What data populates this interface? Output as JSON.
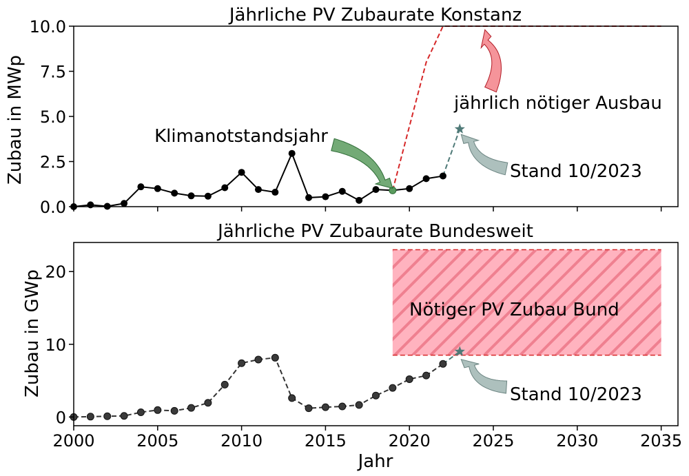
{
  "colors": {
    "black": "#000000",
    "dark_gray": "#333333",
    "red": "#d62728",
    "red_fill": "#ffb3bf",
    "red_hatch": "#ef8090",
    "green_arrow": "#5a9b5e",
    "teal_arrow": "#9fb5b1",
    "star": "#4f7a78"
  },
  "xlabel": "Jahr",
  "chart_data": [
    {
      "type": "line",
      "title": "Jährliche PV Zubaurate Konstanz",
      "xlabel": "",
      "ylabel": "Zubau in MWp",
      "xlim": [
        2000,
        2036
      ],
      "ylim": [
        0,
        10
      ],
      "yticks": [
        "0.0",
        "2.5",
        "5.0",
        "7.5",
        "10.0"
      ],
      "grid": false,
      "series": [
        {
          "style": "solid-with-markers",
          "x": [
            2000,
            2001,
            2002,
            2003,
            2004,
            2005,
            2006,
            2007,
            2008,
            2009,
            2010,
            2011,
            2012,
            2013,
            2014,
            2015,
            2016,
            2017,
            2018,
            2019,
            2020,
            2021,
            2022
          ],
          "values": [
            0.0,
            0.1,
            0.02,
            0.18,
            1.1,
            1.0,
            0.75,
            0.6,
            0.58,
            1.05,
            1.9,
            0.95,
            0.8,
            2.95,
            0.5,
            0.55,
            0.85,
            0.35,
            0.95,
            0.9,
            1.0,
            1.55,
            1.7
          ]
        },
        {
          "style": "dashed-red",
          "x": [
            2019,
            2021,
            2022,
            2035
          ],
          "values": [
            0.9,
            8.0,
            10.0,
            10.0
          ]
        },
        {
          "style": "dashed-teal",
          "x": [
            2022,
            2023
          ],
          "values": [
            1.7,
            4.3
          ]
        }
      ],
      "highlight_point": {
        "x": 2019,
        "y": 0.9
      },
      "star_point": {
        "x": 2023,
        "y": 4.3
      },
      "annotations": [
        {
          "text": "Klimanotstandsjahr",
          "color": "green",
          "target": [
            2019,
            0.9
          ]
        },
        {
          "text": "jährlich nötiger Ausbau",
          "color": "red",
          "target": [
            2024.5,
            9.8
          ]
        },
        {
          "text": "Stand 10/2023",
          "color": "teal",
          "target": [
            2023,
            4.0
          ]
        }
      ]
    },
    {
      "type": "line",
      "title": "Jährliche PV Zubaurate Bundesweit",
      "xlabel": "Jahr",
      "ylabel": "Zubau in GWp",
      "xlim": [
        2000,
        2036
      ],
      "ylim": [
        -1.2,
        24
      ],
      "yticks": [
        "0",
        "10",
        "20"
      ],
      "xticks": [
        "2000",
        "2005",
        "2010",
        "2015",
        "2020",
        "2025",
        "2030",
        "2035"
      ],
      "grid": false,
      "series": [
        {
          "style": "dashed-with-markers",
          "x": [
            2000,
            2001,
            2002,
            2003,
            2004,
            2005,
            2006,
            2007,
            2008,
            2009,
            2010,
            2011,
            2012,
            2013,
            2014,
            2015,
            2016,
            2017,
            2018,
            2019,
            2020,
            2021,
            2022
          ],
          "values": [
            0.0,
            0.05,
            0.1,
            0.15,
            0.65,
            0.95,
            0.85,
            1.25,
            1.95,
            4.45,
            7.4,
            7.9,
            8.15,
            2.6,
            1.2,
            1.35,
            1.45,
            1.65,
            2.95,
            4.0,
            5.2,
            5.7,
            7.3
          ]
        },
        {
          "style": "dashed-teal",
          "x": [
            2022,
            2023
          ],
          "values": [
            7.3,
            9.0
          ]
        }
      ],
      "star_point": {
        "x": 2023,
        "y": 9.0
      },
      "band": {
        "x": [
          2019,
          2035
        ],
        "y": [
          8.5,
          23.0
        ],
        "label": "Nötiger PV Zubau Bund"
      },
      "annotations": [
        {
          "text": "Stand 10/2023",
          "color": "teal",
          "target": [
            2023,
            8.3
          ]
        }
      ]
    }
  ]
}
